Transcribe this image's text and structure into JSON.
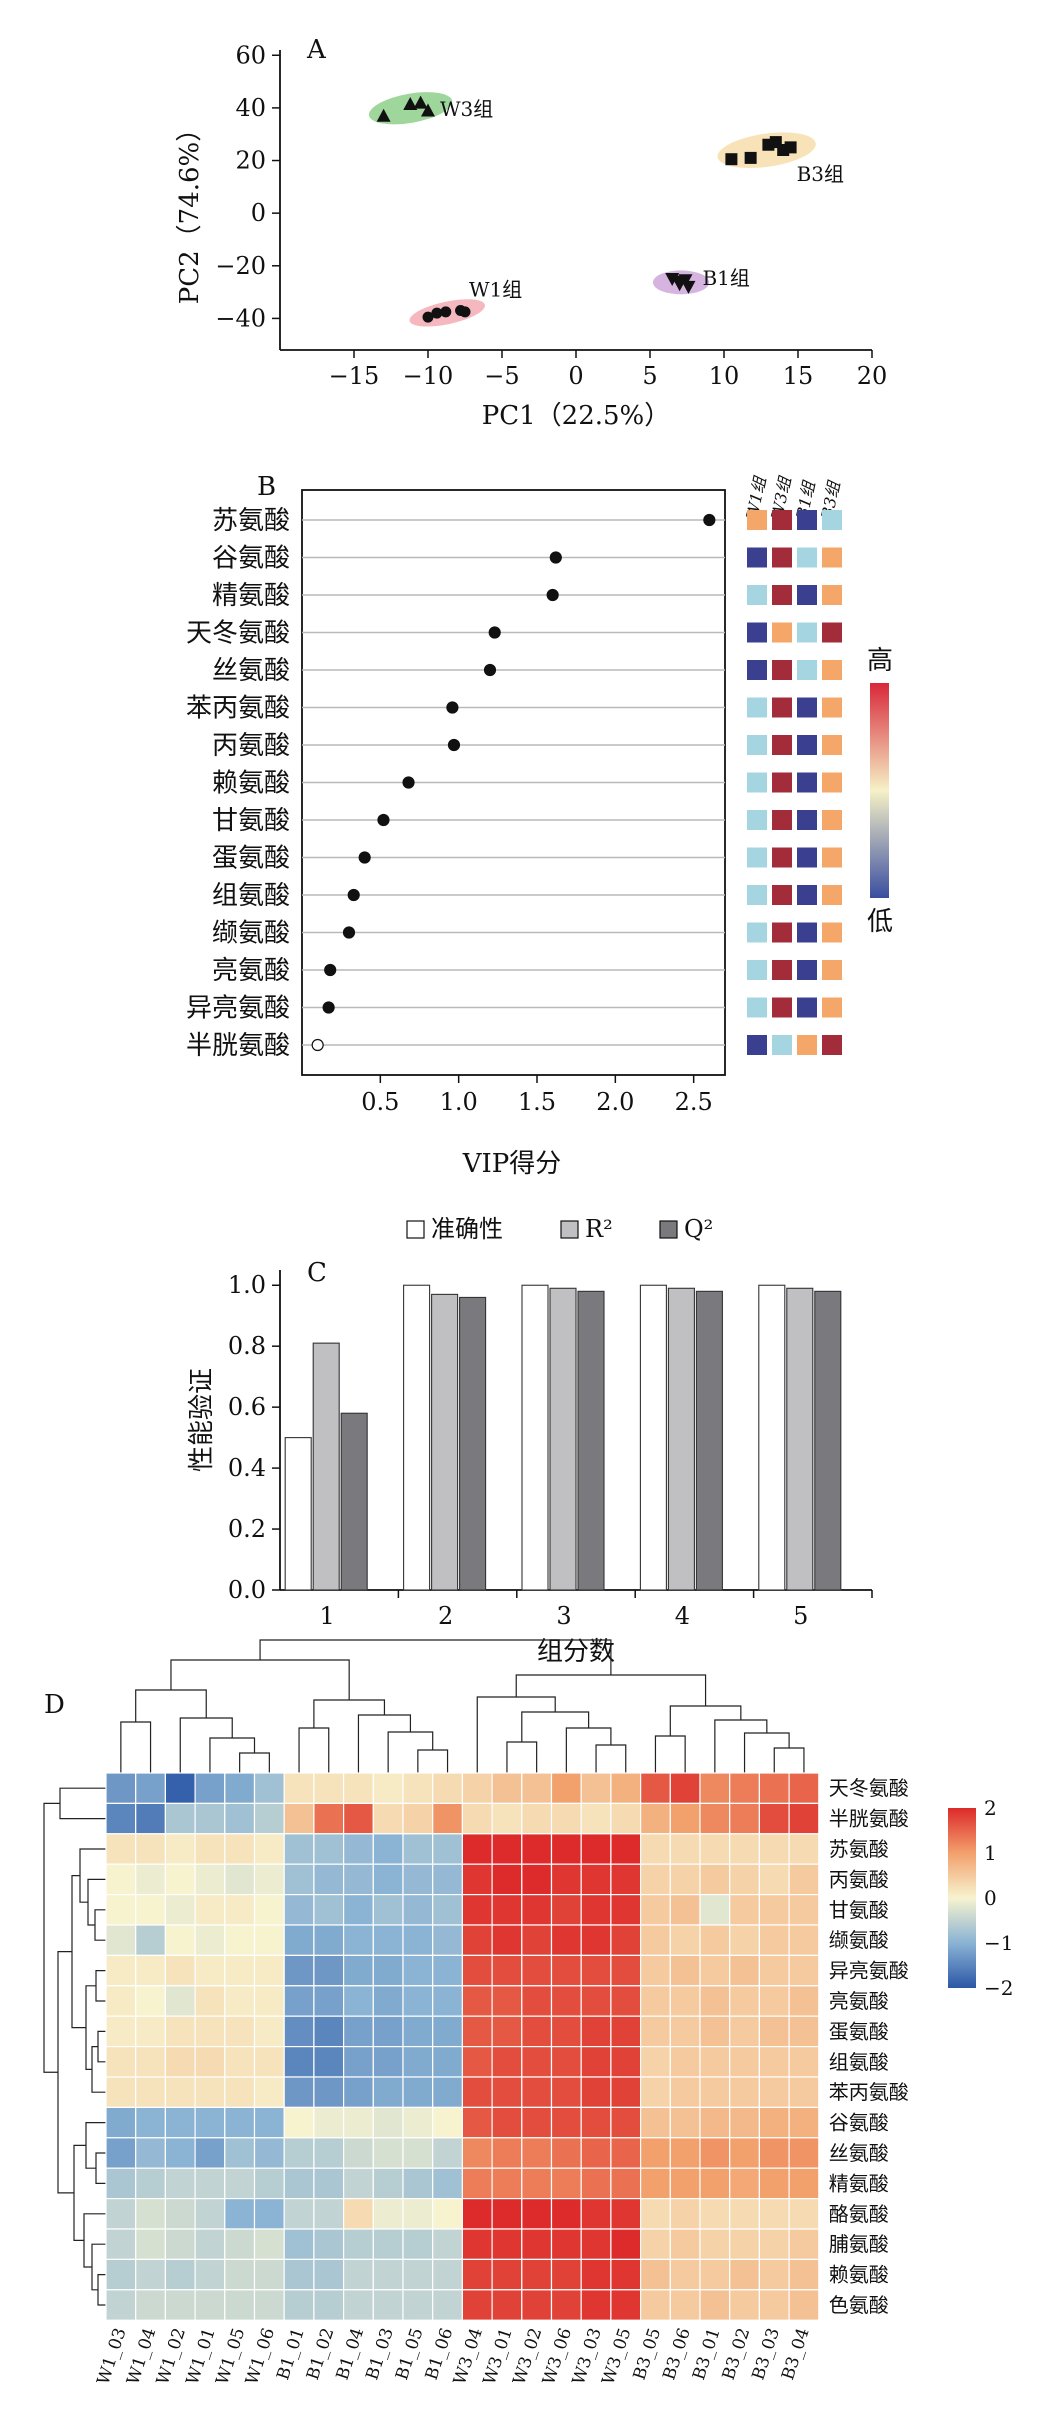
{
  "panelA": {
    "letter": "A",
    "xlabel": "PC1（22.5%）",
    "ylabel": "PC2（74.6%）",
    "xlim": [
      -20,
      20
    ],
    "ylim": [
      -52,
      62
    ],
    "xticks": [
      -15,
      -10,
      -5,
      0,
      5,
      10,
      15,
      20
    ],
    "yticks": [
      60,
      40,
      20,
      0,
      -20,
      -40
    ],
    "groups": [
      {
        "label": "W3组",
        "marker": "triangle",
        "ellipse_color": "#7ec87a",
        "points": [
          [
            -13.0,
            37.0
          ],
          [
            -11.2,
            41.5
          ],
          [
            -10.5,
            42.0
          ],
          [
            -10.0,
            39.0
          ]
        ]
      },
      {
        "label": "B3组",
        "marker": "square",
        "ellipse_color": "#f5d9a0",
        "points": [
          [
            10.5,
            20.5
          ],
          [
            11.8,
            21.0
          ],
          [
            13.0,
            26.0
          ],
          [
            13.5,
            27.0
          ],
          [
            14.0,
            24.0
          ],
          [
            14.5,
            25.0
          ]
        ]
      },
      {
        "label": "W1组",
        "marker": "circle",
        "ellipse_color": "#f2a0a8",
        "points": [
          [
            -10.0,
            -39.5
          ],
          [
            -9.4,
            -38.0
          ],
          [
            -8.8,
            -37.5
          ],
          [
            -7.8,
            -37.0
          ],
          [
            -7.5,
            -37.5
          ]
        ]
      },
      {
        "label": "B1组",
        "marker": "triangle-down",
        "ellipse_color": "#c79cd6",
        "points": [
          [
            6.5,
            -25.0
          ],
          [
            7.0,
            -27.0
          ],
          [
            7.4,
            -25.5
          ],
          [
            7.6,
            -28.0
          ],
          [
            7.0,
            -26.0
          ]
        ]
      }
    ]
  },
  "panelB": {
    "letter": "B",
    "xlabel": "VIP得分",
    "xticks": [
      0.5,
      1.0,
      1.5,
      2.0,
      2.5
    ],
    "xtick_labels": [
      "0.5",
      "1.0",
      "1.5",
      "2.0",
      "2.5"
    ],
    "xlim": [
      0.0,
      2.7
    ],
    "columns": [
      "W1组",
      "W3组",
      "B1组",
      "B3组"
    ],
    "legend_high": "高",
    "legend_low": "低",
    "rows": [
      {
        "name": "苏氨酸",
        "vip": 2.6,
        "cells": [
          0.6,
          1.0,
          0.0,
          0.3
        ]
      },
      {
        "name": "谷氨酸",
        "vip": 1.62,
        "cells": [
          0.0,
          1.0,
          0.3,
          0.6
        ]
      },
      {
        "name": "精氨酸",
        "vip": 1.6,
        "cells": [
          0.3,
          1.0,
          0.0,
          0.6
        ]
      },
      {
        "name": "天冬氨酸",
        "vip": 1.23,
        "cells": [
          0.0,
          0.6,
          0.3,
          1.0
        ]
      },
      {
        "name": "丝氨酸",
        "vip": 1.2,
        "cells": [
          0.0,
          1.0,
          0.3,
          0.6
        ]
      },
      {
        "name": "苯丙氨酸",
        "vip": 0.96,
        "cells": [
          0.3,
          1.0,
          0.0,
          0.6
        ]
      },
      {
        "name": "丙氨酸",
        "vip": 0.97,
        "cells": [
          0.3,
          1.0,
          0.0,
          0.6
        ]
      },
      {
        "name": "赖氨酸",
        "vip": 0.68,
        "cells": [
          0.3,
          1.0,
          0.0,
          0.6
        ]
      },
      {
        "name": "甘氨酸",
        "vip": 0.52,
        "cells": [
          0.3,
          1.0,
          0.0,
          0.6
        ]
      },
      {
        "name": "蛋氨酸",
        "vip": 0.4,
        "cells": [
          0.3,
          1.0,
          0.0,
          0.6
        ]
      },
      {
        "name": "组氨酸",
        "vip": 0.33,
        "cells": [
          0.3,
          1.0,
          0.0,
          0.6
        ]
      },
      {
        "name": "缬氨酸",
        "vip": 0.3,
        "cells": [
          0.3,
          1.0,
          0.0,
          0.6
        ]
      },
      {
        "name": "亮氨酸",
        "vip": 0.18,
        "cells": [
          0.3,
          1.0,
          0.0,
          0.6
        ]
      },
      {
        "name": "异亮氨酸",
        "vip": 0.17,
        "cells": [
          0.3,
          1.0,
          0.0,
          0.6
        ]
      },
      {
        "name": "半胱氨酸",
        "vip": 0.1,
        "cells": [
          0.0,
          0.3,
          0.6,
          1.0
        ]
      }
    ]
  },
  "panelC": {
    "letter": "C",
    "type": "bar",
    "xlabel": "组分数",
    "ylabel": "性能验证",
    "ylim": [
      0.0,
      1.05
    ],
    "yticks": [
      0.0,
      0.2,
      0.4,
      0.6,
      0.8,
      1.0
    ],
    "ytick_labels": [
      "0.0",
      "0.2",
      "0.4",
      "0.6",
      "0.8",
      "1.0"
    ],
    "categories": [
      "1",
      "2",
      "3",
      "4",
      "5"
    ],
    "series": [
      {
        "name": "准确性",
        "color": "#ffffff",
        "values": [
          0.5,
          1.0,
          1.0,
          1.0,
          1.0
        ]
      },
      {
        "name": "R²",
        "color": "#c0c0c2",
        "values": [
          0.81,
          0.97,
          0.99,
          0.99,
          0.99
        ]
      },
      {
        "name": "Q²",
        "color": "#7a7a7e",
        "values": [
          0.58,
          0.96,
          0.98,
          0.98,
          0.98
        ]
      }
    ]
  },
  "panelD": {
    "letter": "D",
    "type": "heatmap",
    "columns": [
      "W1_03",
      "W1_04",
      "W1_02",
      "W1_01",
      "W1_05",
      "W1_06",
      "B1_01",
      "B1_02",
      "B1_04",
      "B1_03",
      "B1_05",
      "B1_06",
      "W3_04",
      "W3_01",
      "W3_02",
      "W3_06",
      "W3_03",
      "W3_05",
      "B3_05",
      "B3_06",
      "B3_01",
      "B3_02",
      "B3_03",
      "B3_04"
    ],
    "rows": [
      "天冬氨酸",
      "半胱氨酸",
      "苏氨酸",
      "丙氨酸",
      "甘氨酸",
      "缬氨酸",
      "异亮氨酸",
      "亮氨酸",
      "蛋氨酸",
      "组氨酸",
      "苯丙氨酸",
      "谷氨酸",
      "丝氨酸",
      "精氨酸",
      "酪氨酸",
      "脯氨酸",
      "赖氨酸",
      "色氨酸"
    ],
    "colorbar_ticks": [
      2,
      1,
      0,
      -1,
      -2
    ],
    "colorbar_labels": [
      "2",
      "1",
      "0",
      "−1",
      "−2"
    ],
    "values": [
      [
        -1.3,
        -1.2,
        -1.9,
        -1.2,
        -1.1,
        -0.8,
        0.2,
        0.2,
        0.2,
        0.1,
        0.2,
        0.3,
        0.4,
        0.6,
        0.6,
        1.0,
        0.6,
        0.8,
        1.6,
        1.8,
        1.2,
        1.3,
        1.4,
        1.5
      ],
      [
        -1.5,
        -1.6,
        -0.7,
        -0.7,
        -0.8,
        -0.6,
        0.6,
        1.4,
        1.6,
        0.3,
        0.4,
        1.1,
        0.3,
        0.2,
        0.3,
        0.3,
        0.2,
        0.3,
        0.8,
        1.0,
        1.2,
        1.3,
        1.7,
        1.8
      ],
      [
        0.2,
        0.2,
        0.1,
        0.2,
        0.2,
        0.1,
        -0.8,
        -0.8,
        -0.9,
        -1.0,
        -0.8,
        -0.8,
        2.0,
        2.0,
        2.0,
        2.0,
        2.0,
        2.0,
        0.3,
        0.3,
        0.3,
        0.3,
        0.3,
        0.3
      ],
      [
        0.0,
        -0.1,
        0.0,
        -0.1,
        -0.2,
        -0.1,
        -0.8,
        -0.9,
        -0.9,
        -1.0,
        -0.9,
        -0.9,
        1.9,
        2.0,
        2.0,
        1.9,
        1.9,
        1.9,
        0.4,
        0.4,
        0.5,
        0.4,
        0.3,
        0.5
      ],
      [
        0.0,
        0.0,
        -0.1,
        0.1,
        0.1,
        0.0,
        -0.9,
        -0.8,
        -1.0,
        -0.8,
        -0.9,
        -0.8,
        1.9,
        1.9,
        1.9,
        1.8,
        1.9,
        1.9,
        0.5,
        0.6,
        -0.2,
        0.5,
        0.5,
        0.5
      ],
      [
        -0.2,
        -0.6,
        0.0,
        -0.1,
        0.0,
        0.0,
        -1.1,
        -1.1,
        -1.0,
        -1.0,
        -1.0,
        -0.9,
        1.8,
        1.9,
        1.8,
        1.9,
        1.9,
        1.8,
        0.5,
        0.4,
        0.5,
        0.4,
        0.5,
        0.5
      ],
      [
        0.1,
        0.1,
        0.2,
        0.1,
        0.1,
        0.1,
        -1.3,
        -1.3,
        -1.1,
        -1.1,
        -1.0,
        -1.0,
        1.7,
        1.7,
        1.7,
        1.7,
        1.7,
        1.7,
        0.5,
        0.6,
        0.5,
        0.6,
        0.5,
        0.5
      ],
      [
        0.1,
        0.0,
        -0.2,
        0.2,
        0.1,
        0.1,
        -1.2,
        -1.2,
        -1.0,
        -1.1,
        -1.0,
        -1.0,
        1.6,
        1.6,
        1.7,
        1.7,
        1.7,
        1.7,
        0.5,
        0.5,
        0.6,
        0.5,
        0.5,
        0.6
      ],
      [
        0.1,
        0.1,
        0.2,
        0.2,
        0.2,
        0.1,
        -1.4,
        -1.5,
        -1.2,
        -1.2,
        -1.1,
        -1.1,
        1.6,
        1.6,
        1.7,
        1.7,
        1.8,
        1.8,
        0.5,
        0.5,
        0.6,
        0.5,
        0.6,
        0.6
      ],
      [
        0.2,
        0.2,
        0.3,
        0.3,
        0.2,
        0.2,
        -1.5,
        -1.5,
        -1.2,
        -1.2,
        -1.1,
        -1.1,
        1.6,
        1.7,
        1.7,
        1.7,
        1.8,
        1.8,
        0.4,
        0.5,
        0.5,
        0.5,
        0.5,
        0.5
      ],
      [
        0.2,
        0.2,
        0.2,
        0.2,
        0.2,
        0.1,
        -1.3,
        -1.3,
        -1.2,
        -1.1,
        -1.1,
        -1.1,
        1.7,
        1.7,
        1.7,
        1.7,
        1.8,
        1.8,
        0.4,
        0.5,
        0.5,
        0.5,
        0.5,
        0.5
      ],
      [
        -1.1,
        -1.0,
        -1.0,
        -1.0,
        -1.0,
        -1.0,
        0.0,
        -0.1,
        -0.1,
        -0.2,
        -0.1,
        0.0,
        1.6,
        1.7,
        1.7,
        1.7,
        1.7,
        1.7,
        0.6,
        0.6,
        0.7,
        0.7,
        0.8,
        0.8
      ],
      [
        -1.2,
        -0.9,
        -1.0,
        -1.2,
        -0.8,
        -0.9,
        -0.6,
        -0.6,
        -0.4,
        -0.3,
        -0.3,
        -0.5,
        1.2,
        1.3,
        1.3,
        1.4,
        1.5,
        1.5,
        1.0,
        1.0,
        1.1,
        1.0,
        1.1,
        1.1
      ],
      [
        -0.7,
        -0.6,
        -0.5,
        -0.5,
        -0.5,
        -0.6,
        -0.7,
        -0.7,
        -0.5,
        -0.6,
        -0.7,
        -0.8,
        1.3,
        1.3,
        1.3,
        1.3,
        1.4,
        1.4,
        1.0,
        1.0,
        1.0,
        0.9,
        1.0,
        1.0
      ],
      [
        -0.5,
        -0.3,
        -0.4,
        -0.5,
        -1.0,
        -1.0,
        -0.5,
        -0.5,
        0.3,
        -0.1,
        -0.1,
        0.0,
        2.0,
        2.0,
        2.0,
        2.0,
        1.9,
        1.9,
        0.3,
        0.4,
        0.3,
        0.3,
        0.3,
        0.3
      ],
      [
        -0.5,
        -0.3,
        -0.4,
        -0.5,
        -0.4,
        -0.3,
        -0.8,
        -0.7,
        -0.6,
        -0.6,
        -0.6,
        -0.5,
        1.9,
        1.9,
        1.9,
        1.9,
        1.9,
        2.0,
        0.4,
        0.5,
        0.4,
        0.4,
        0.4,
        0.5
      ],
      [
        -0.6,
        -0.5,
        -0.6,
        -0.5,
        -0.4,
        -0.4,
        -0.7,
        -0.7,
        -0.5,
        -0.5,
        -0.5,
        -0.5,
        1.8,
        1.8,
        1.8,
        1.8,
        1.9,
        1.9,
        0.6,
        0.5,
        0.5,
        0.6,
        0.5,
        0.6
      ],
      [
        -0.5,
        -0.4,
        -0.4,
        -0.4,
        -0.4,
        -0.4,
        -0.6,
        -0.6,
        -0.5,
        -0.5,
        -0.5,
        -0.5,
        1.8,
        1.8,
        1.8,
        1.8,
        1.9,
        1.9,
        0.5,
        0.5,
        0.6,
        0.5,
        0.5,
        0.6
      ]
    ]
  }
}
